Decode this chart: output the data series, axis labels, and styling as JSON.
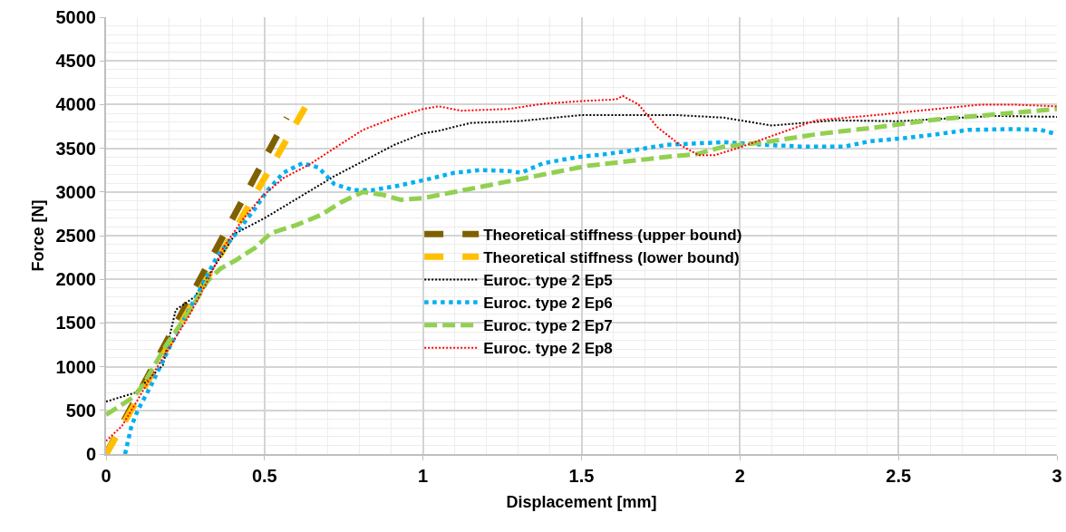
{
  "chart_data": {
    "type": "line",
    "xlabel": "Displacement [mm]",
    "ylabel": "Force [N]",
    "xlim": [
      0,
      3
    ],
    "xticks": [
      0,
      0.5,
      1,
      1.5,
      2,
      2.5,
      3
    ],
    "ylim": [
      0,
      5000
    ],
    "yticks": [
      0,
      500,
      1000,
      1500,
      2000,
      2500,
      3000,
      3500,
      4000,
      4500,
      5000
    ],
    "grid": true,
    "legend": "center",
    "marker": "none",
    "series": [
      {
        "name": "Theoretical stiffness (upper bound)",
        "color": "#7f6000",
        "line_style": "dashed",
        "x": [
          0,
          0.57
        ],
        "values": [
          0,
          3850
        ]
      },
      {
        "name": "Theoretical stiffness (lower bound)",
        "color": "#ffc000",
        "line_style": "dashed",
        "x": [
          0,
          0.63
        ],
        "values": [
          0,
          3980
        ]
      },
      {
        "name": "Euroc. type 2 Ep5",
        "color": "#000000",
        "line_style": "dotted",
        "x": [
          0,
          0.09,
          0.18,
          0.21,
          0.22,
          0.28,
          0.41,
          0.5,
          0.72,
          0.91,
          1.0,
          1.05,
          1.15,
          1.3,
          1.5,
          1.8,
          1.95,
          2.1,
          2.3,
          2.5,
          2.8,
          3.0
        ],
        "values": [
          600,
          700,
          1020,
          1500,
          1650,
          1800,
          2530,
          2700,
          3180,
          3540,
          3670,
          3700,
          3790,
          3810,
          3880,
          3880,
          3850,
          3760,
          3820,
          3810,
          3870,
          3860
        ]
      },
      {
        "name": "Euroc. type 2 Ep6",
        "color": "#00b0f0",
        "line_style": "dotted",
        "x": [
          0.06,
          0.08,
          0.1,
          0.14,
          0.2,
          0.25,
          0.3,
          0.35,
          0.42,
          0.47,
          0.51,
          0.56,
          0.62,
          0.67,
          0.72,
          0.78,
          0.84,
          0.92,
          1.02,
          1.1,
          1.18,
          1.27,
          1.31,
          1.38,
          1.49,
          1.57,
          1.65,
          1.77,
          1.95,
          2.08,
          2.19,
          2.33,
          2.41,
          2.53,
          2.62,
          2.72,
          2.86,
          2.95,
          3.0
        ],
        "values": [
          0,
          320,
          500,
          770,
          1220,
          1570,
          1910,
          2260,
          2570,
          2810,
          3020,
          3220,
          3330,
          3280,
          3090,
          3020,
          3020,
          3070,
          3150,
          3220,
          3250,
          3240,
          3220,
          3330,
          3400,
          3430,
          3470,
          3540,
          3570,
          3540,
          3520,
          3520,
          3580,
          3620,
          3660,
          3710,
          3720,
          3710,
          3660
        ]
      },
      {
        "name": "Euroc. type 2 Ep7",
        "color": "#92d050",
        "line_style": "dashed",
        "x": [
          0,
          0.09,
          0.12,
          0.19,
          0.27,
          0.32,
          0.36,
          0.41,
          0.47,
          0.52,
          0.6,
          0.68,
          0.74,
          0.81,
          0.87,
          0.93,
          1.0,
          1.1,
          1.24,
          1.38,
          1.52,
          1.67,
          1.79,
          1.86,
          1.95,
          2.08,
          2.24,
          2.43,
          2.62,
          2.81,
          3.0
        ],
        "values": [
          450,
          660,
          810,
          1250,
          1670,
          1980,
          2120,
          2220,
          2360,
          2530,
          2620,
          2740,
          2880,
          3000,
          2970,
          2910,
          2930,
          3000,
          3100,
          3200,
          3300,
          3360,
          3410,
          3430,
          3520,
          3570,
          3660,
          3740,
          3830,
          3890,
          3950
        ]
      },
      {
        "name": "Euroc. type 2 Ep8",
        "color": "#ff0000",
        "line_style": "dotted",
        "x": [
          0,
          0.05,
          0.09,
          0.14,
          0.2,
          0.26,
          0.32,
          0.37,
          0.43,
          0.49,
          0.56,
          0.64,
          0.72,
          0.81,
          0.91,
          1.0,
          1.05,
          1.12,
          1.27,
          1.38,
          1.5,
          1.61,
          1.63,
          1.68,
          1.74,
          1.81,
          1.87,
          1.92,
          2.0,
          2.1,
          2.24,
          2.43,
          2.62,
          2.76,
          2.86,
          3.0
        ],
        "values": [
          150,
          320,
          560,
          870,
          1220,
          1570,
          1980,
          2360,
          2680,
          2940,
          3160,
          3310,
          3500,
          3710,
          3850,
          3950,
          3980,
          3930,
          3950,
          4010,
          4040,
          4060,
          4100,
          4000,
          3740,
          3540,
          3420,
          3420,
          3510,
          3640,
          3820,
          3880,
          3950,
          4000,
          4000,
          3980
        ]
      }
    ]
  }
}
